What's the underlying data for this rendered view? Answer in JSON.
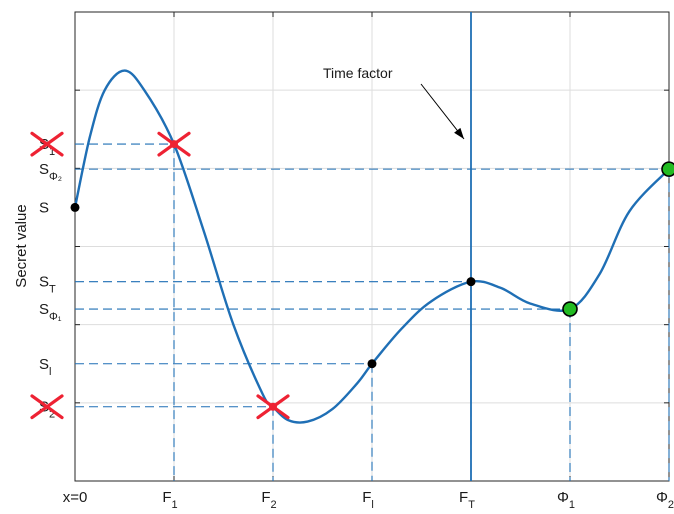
{
  "chart_data": {
    "type": "line",
    "ylabel": "Secret value",
    "xlabel": "",
    "x_ticks": [
      {
        "base": "x=0",
        "sub": ""
      },
      {
        "base": "F",
        "sub": "1"
      },
      {
        "base": "F",
        "sub": "2"
      },
      {
        "base": "F",
        "sub": "l"
      },
      {
        "base": "F",
        "sub": "T"
      },
      {
        "base": "Φ",
        "sub": "1"
      },
      {
        "base": "Φ",
        "sub": "2"
      }
    ],
    "x_tick_positions": [
      0,
      1,
      2,
      3,
      4,
      5,
      6
    ],
    "xlim": [
      0,
      6
    ],
    "ylim": [
      0,
      6
    ],
    "grid": true,
    "curve": {
      "color": "#1f6fb5",
      "x": [
        0,
        0.15,
        0.3,
        0.5,
        0.7,
        1.0,
        1.3,
        1.6,
        1.9,
        2.0,
        2.15,
        2.35,
        2.6,
        2.85,
        3.0,
        3.3,
        3.6,
        4.0,
        4.3,
        4.6,
        5.0,
        5.3,
        5.6,
        6.0
      ],
      "y": [
        3.5,
        4.4,
        5.0,
        5.25,
        5.0,
        4.31,
        3.2,
        2.0,
        1.1,
        0.95,
        0.78,
        0.76,
        0.92,
        1.25,
        1.5,
        1.95,
        2.3,
        2.55,
        2.47,
        2.27,
        2.2,
        2.65,
        3.45,
        3.99
      ]
    },
    "y_ticks": [
      {
        "base": "S",
        "sub": "1",
        "value": 4.31,
        "struck": true
      },
      {
        "base": "S",
        "sub": "Φ₂",
        "value": 3.99,
        "struck": false
      },
      {
        "base": "S",
        "sub": "",
        "value": 3.5,
        "struck": false
      },
      {
        "base": "S",
        "sub": "T",
        "value": 2.55,
        "struck": false
      },
      {
        "base": "S",
        "sub": "Φ₁",
        "value": 2.2,
        "struck": false
      },
      {
        "base": "S",
        "sub": "l",
        "value": 1.5,
        "struck": false
      },
      {
        "base": "S",
        "sub": "2",
        "value": 0.95,
        "struck": true
      }
    ],
    "points": [
      {
        "name": "secret",
        "x": 0,
        "y": 3.5,
        "style": "black-dot"
      },
      {
        "name": "F1",
        "x": 1,
        "y": 4.31,
        "style": "red-cross"
      },
      {
        "name": "F2",
        "x": 2,
        "y": 0.95,
        "style": "red-cross"
      },
      {
        "name": "Fl",
        "x": 3,
        "y": 1.5,
        "style": "black-dot"
      },
      {
        "name": "FT",
        "x": 4,
        "y": 2.55,
        "style": "black-dot"
      },
      {
        "name": "Phi1",
        "x": 5,
        "y": 2.2,
        "style": "green-dot"
      },
      {
        "name": "Phi2",
        "x": 6,
        "y": 3.99,
        "style": "green-dot"
      }
    ],
    "vertical_line_x": 4,
    "annotation": {
      "text": "Time factor"
    },
    "colors": {
      "curve": "#1f6fb5",
      "cross": "#ee2233",
      "green": "#22bb22",
      "grid": "#dddddd"
    }
  }
}
